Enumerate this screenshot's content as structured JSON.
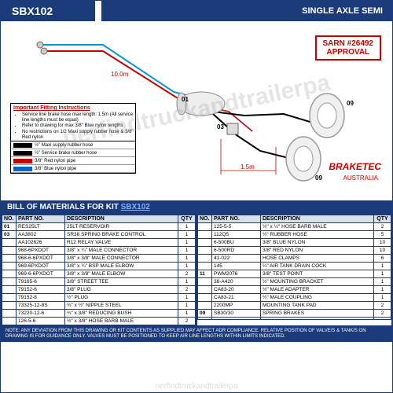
{
  "header": {
    "code": "SBX102",
    "title": "SINGLE AXLE SEMI"
  },
  "approval": {
    "line1": "SARN #26492",
    "line2": "APPROVAL"
  },
  "brand": {
    "name": "BRAKETEC",
    "sub": "AUSTRALIA"
  },
  "dims": {
    "d1": "10.0m",
    "d2": "1.5m"
  },
  "callouts": [
    "01",
    "03",
    "09",
    "09"
  ],
  "legend": {
    "title": "Important Fitting Instructions",
    "items": [
      "Service line brake hose max length: 1.5m (All service line lengths must be equal)",
      "Refer to drawing for max 3/8\" Blue nylon lengths",
      "No restrictions on 1/2 Maxi supply rubber hose & 3/8\" Red nylon"
    ],
    "keys": [
      {
        "color": "#000000",
        "label": "½\" Maxi supply rubber hose"
      },
      {
        "color": "#000000",
        "label": "½\" Service brake rubber hose"
      },
      {
        "color": "#cc0000",
        "label": "3/8\" Red nylon pipe"
      },
      {
        "color": "#0066cc",
        "label": "3/8\" Blue nylon pipe"
      }
    ]
  },
  "bom": {
    "title": "BILL OF MATERIALS FOR KIT",
    "link": "SBX102"
  },
  "bom_cols": [
    "NO.",
    "PART NO.",
    "DESCRIPTION",
    "QTY"
  ],
  "bom_left": [
    {
      "no": "01",
      "part": "RES25LT",
      "desc": "25LT RESERVOIR",
      "qty": "1"
    },
    {
      "no": "03",
      "part": "AA3802",
      "desc": "SR38 SPRING BRAKE CONTROL",
      "qty": "1"
    },
    {
      "no": "",
      "part": "AA102626",
      "desc": "R12 RELAY VALVE",
      "qty": "1"
    },
    {
      "no": "",
      "part": "968-6PXDOT",
      "desc": "3/8\" x ¼\" MALE CONNECTOR",
      "qty": "1"
    },
    {
      "no": "",
      "part": "968-6-6PXDOT",
      "desc": "3/8\" x 3/8\" MALE CONNECTOR",
      "qty": "1"
    },
    {
      "no": "",
      "part": "969-6PXDOT",
      "desc": "3/8\" x ¼\" BSP MALE ELBOW",
      "qty": "1"
    },
    {
      "no": "",
      "part": "969-6-6PXDOT",
      "desc": "3/8\" x 3/8\" MALE ELBOW",
      "qty": "2"
    },
    {
      "no": "",
      "part": "79165-6",
      "desc": "3/8\" STREET TEE",
      "qty": "1"
    },
    {
      "no": "",
      "part": "79152-6",
      "desc": "3/8\" PLUG",
      "qty": "2"
    },
    {
      "no": "",
      "part": "79152-8",
      "desc": "½\" PLUG",
      "qty": "1"
    },
    {
      "no": "",
      "part": "73325-12-8S",
      "desc": "¾\" x ½\" NIPPLE STEEL",
      "qty": "1"
    },
    {
      "no": "",
      "part": "73220-12-6",
      "desc": "¾\" x 3/8\" REDUCING BUSH",
      "qty": "1"
    },
    {
      "no": "",
      "part": "126-5-6",
      "desc": "½\" x 3/8\" HOSE BARB MALE",
      "qty": "2"
    }
  ],
  "bom_right": [
    {
      "no": "",
      "part": "125-5-5",
      "desc": "½\" x ½\" HOSE BARB MALE",
      "qty": "2"
    },
    {
      "no": "",
      "part": "112Q5",
      "desc": "½\" RUBBER HOSE",
      "qty": "5"
    },
    {
      "no": "",
      "part": "6-500BU",
      "desc": "3/8\" BLUE NYLON",
      "qty": "10"
    },
    {
      "no": "",
      "part": "6-500RD",
      "desc": "3/8\" RED NYLON",
      "qty": "10"
    },
    {
      "no": "",
      "part": "41-022",
      "desc": "HOSE CLAMPS",
      "qty": "6"
    },
    {
      "no": "",
      "part": "145",
      "desc": "¼\" AIR TANK DRAIN COCK",
      "qty": "1"
    },
    {
      "no": "11",
      "part": "PWM2076",
      "desc": "3/8\" TEST POINT",
      "qty": "1"
    },
    {
      "no": "",
      "part": "38-A420",
      "desc": "½\" MOUNTING BRACKET",
      "qty": "1"
    },
    {
      "no": "",
      "part": "CA83-20",
      "desc": "½\" MALE ADAPTER",
      "qty": "1"
    },
    {
      "no": "",
      "part": "CA83-21",
      "desc": "½\" MALE COUPLING",
      "qty": "1"
    },
    {
      "no": "",
      "part": "2200MP",
      "desc": "MOUNTING TANK PAD",
      "qty": "2"
    },
    {
      "no": "09",
      "part": "SB30/30",
      "desc": "SPRING BRAKES",
      "qty": "2"
    },
    {
      "no": "",
      "part": "",
      "desc": "",
      "qty": ""
    }
  ],
  "note": "NOTE: ANY DEVIATION FROM THIS DRAWING OR KIT CONTENTS AS SUPPLIED MAY AFFECT ADR COMPLIANCE. RELATIVE POSITION OF VALVE/S & TANK/S ON DRAWING IS FOR GUIDANCE ONLY. VALVES MUST BE POSITIONED TO KEEP AIR LINE LENGTHS WITHIN LIMITS INDICATED.",
  "colors": {
    "blue_line": "#0099dd",
    "red_line": "#cc0000",
    "black_line": "#000000",
    "header_bg": "#1a3a7a"
  }
}
